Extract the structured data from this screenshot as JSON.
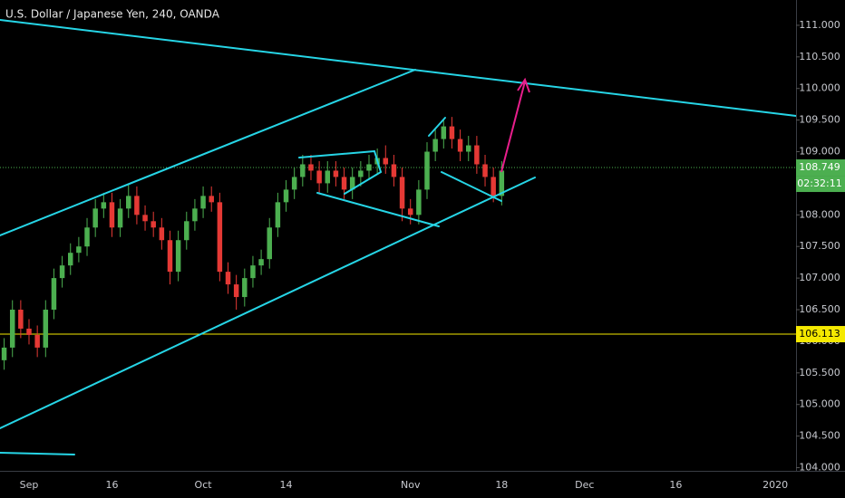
{
  "chart_data": {
    "type": "candlestick",
    "title": "U.S. Dollar / Japanese Yen, 240, OANDA",
    "categories": [
      null,
      null,
      null,
      "Sep",
      null,
      null,
      null,
      null,
      null,
      null,
      null,
      null,
      null,
      "16",
      null,
      null,
      null,
      null,
      null,
      null,
      null,
      null,
      null,
      null,
      "Oct",
      null,
      null,
      null,
      null,
      null,
      null,
      null,
      null,
      null,
      "14",
      null,
      null,
      null,
      null,
      null,
      null,
      null,
      null,
      null,
      null,
      null,
      null,
      null,
      null,
      "Nov",
      null,
      null,
      null,
      null,
      null,
      null,
      null,
      null,
      null,
      null,
      "18",
      null,
      null,
      null,
      null,
      null,
      null,
      null,
      null,
      null,
      "Dec",
      null,
      null,
      null,
      null,
      null,
      null,
      null,
      null,
      null,
      null,
      "16",
      null,
      null,
      null,
      null,
      null,
      null,
      null,
      null,
      null,
      null,
      null,
      "2020",
      null,
      null
    ],
    "open": [
      105.7,
      105.9,
      106.5,
      106.2,
      106.1,
      105.9,
      106.5,
      107.0,
      107.2,
      107.4,
      107.5,
      107.8,
      108.1,
      108.2,
      107.8,
      108.1,
      108.3,
      108.0,
      107.9,
      107.8,
      107.6,
      107.1,
      107.6,
      107.9,
      108.1,
      108.3,
      108.2,
      107.1,
      106.9,
      106.7,
      107.0,
      107.2,
      107.3,
      107.8,
      108.2,
      108.4,
      108.6,
      108.8,
      108.7,
      108.5,
      108.7,
      108.6,
      108.4,
      108.6,
      108.7,
      108.8,
      108.9,
      108.8,
      108.6,
      108.1,
      108.0,
      108.4,
      109.0,
      109.2,
      109.4,
      109.2,
      109.0,
      109.1,
      108.8,
      108.6,
      108.3,
      null,
      null,
      null,
      null,
      null,
      null,
      null,
      null,
      null,
      null,
      null,
      null,
      null,
      null,
      null,
      null,
      null,
      null,
      null,
      null,
      null,
      null,
      null,
      null,
      null,
      null,
      null,
      null,
      null,
      null,
      null,
      null,
      null,
      null,
      null
    ],
    "high": [
      106.05,
      106.65,
      106.65,
      106.35,
      106.25,
      106.65,
      107.15,
      107.35,
      107.55,
      107.65,
      107.95,
      108.25,
      108.35,
      108.35,
      108.25,
      108.5,
      108.45,
      108.15,
      108.05,
      107.95,
      107.75,
      107.75,
      108.05,
      108.25,
      108.45,
      108.45,
      108.35,
      107.25,
      107.05,
      107.15,
      107.35,
      107.45,
      107.95,
      108.35,
      108.55,
      108.75,
      108.95,
      108.95,
      108.85,
      108.85,
      108.85,
      108.75,
      108.75,
      108.85,
      108.95,
      109.05,
      109.1,
      108.95,
      108.75,
      108.25,
      108.55,
      109.15,
      109.35,
      109.5,
      109.55,
      109.35,
      109.25,
      109.25,
      108.95,
      108.75,
      108.85,
      null,
      null,
      null,
      null,
      null,
      null,
      null,
      null,
      null,
      null,
      null,
      null,
      null,
      null,
      null,
      null,
      null,
      null,
      null,
      null,
      null,
      null,
      null,
      null,
      null,
      null,
      null,
      null,
      null,
      null,
      null,
      null,
      null,
      null,
      null
    ],
    "low": [
      105.55,
      105.75,
      106.05,
      105.95,
      105.75,
      105.75,
      106.35,
      106.85,
      107.05,
      107.25,
      107.35,
      107.65,
      107.95,
      107.65,
      107.65,
      107.95,
      107.85,
      107.75,
      107.65,
      107.45,
      106.9,
      106.95,
      107.45,
      107.75,
      107.95,
      108.05,
      106.95,
      106.75,
      106.5,
      106.55,
      106.85,
      107.05,
      107.15,
      107.65,
      108.05,
      108.25,
      108.45,
      108.55,
      108.35,
      108.35,
      108.45,
      108.25,
      108.25,
      108.45,
      108.55,
      108.65,
      108.65,
      108.45,
      107.9,
      107.85,
      107.85,
      108.25,
      108.85,
      109.05,
      109.05,
      108.85,
      108.85,
      108.65,
      108.45,
      108.2,
      108.15,
      null,
      null,
      null,
      null,
      null,
      null,
      null,
      null,
      null,
      null,
      null,
      null,
      null,
      null,
      null,
      null,
      null,
      null,
      null,
      null,
      null,
      null,
      null,
      null,
      null,
      null,
      null,
      null,
      null,
      null,
      null,
      null,
      null,
      null,
      null
    ],
    "close": [
      105.9,
      106.5,
      106.2,
      106.1,
      105.9,
      106.5,
      107.0,
      107.2,
      107.4,
      107.5,
      107.8,
      108.1,
      108.2,
      107.8,
      108.1,
      108.3,
      108.0,
      107.9,
      107.8,
      107.6,
      107.1,
      107.6,
      107.9,
      108.1,
      108.3,
      108.2,
      107.1,
      106.9,
      106.7,
      107.0,
      107.2,
      107.3,
      107.8,
      108.2,
      108.4,
      108.6,
      108.8,
      108.7,
      108.5,
      108.7,
      108.6,
      108.4,
      108.6,
      108.7,
      108.8,
      108.9,
      108.8,
      108.6,
      108.1,
      108.0,
      108.4,
      109.0,
      109.2,
      109.4,
      109.2,
      109.0,
      109.1,
      108.8,
      108.6,
      108.3,
      108.7,
      null,
      null,
      null,
      null,
      null,
      null,
      null,
      null,
      null,
      null,
      null,
      null,
      null,
      null,
      null,
      null,
      null,
      null,
      null,
      null,
      null,
      null,
      null,
      null,
      null,
      null,
      null,
      null,
      null,
      null,
      null,
      null,
      null,
      null,
      null
    ],
    "up_color": "#4caf50",
    "down_color": "#e53935",
    "ylim": [
      103.95,
      111.4
    ],
    "yticks": [
      {
        "value": 104,
        "label": "104.000"
      },
      {
        "value": 104.5,
        "label": "104.500"
      },
      {
        "value": 105,
        "label": "105.000"
      },
      {
        "value": 105.5,
        "label": "105.500"
      },
      {
        "value": 106,
        "label": "106.000"
      },
      {
        "value": 106.5,
        "label": "106.500"
      },
      {
        "value": 107,
        "label": "107.000"
      },
      {
        "value": 107.5,
        "label": "107.500"
      },
      {
        "value": 108,
        "label": "108.000"
      },
      {
        "value": 108.5,
        "label": "108.500"
      },
      {
        "value": 109,
        "label": "109.000"
      },
      {
        "value": 109.5,
        "label": "109.500"
      },
      {
        "value": 110,
        "label": "110.000"
      },
      {
        "value": 110.5,
        "label": "110.500"
      },
      {
        "value": 111,
        "label": "111.000"
      }
    ],
    "price_lines": [
      {
        "value": 106.113,
        "color": "#f5e900",
        "text_color": "#000000",
        "dotted": false
      },
      {
        "value": 108.749,
        "color": "#4caf50",
        "text_color": "#ffffff",
        "dotted": true,
        "countdown": "02:32:11"
      }
    ]
  }
}
